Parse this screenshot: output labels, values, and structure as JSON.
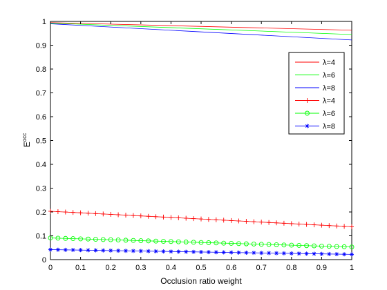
{
  "chart_data": {
    "type": "line",
    "xlabel": "Occlusion ratio weight",
    "ylabel": {
      "base": "E",
      "sup": "occ"
    },
    "xlim": [
      0,
      1
    ],
    "ylim": [
      0,
      1
    ],
    "xticks": [
      0,
      0.1,
      0.2,
      0.3,
      0.4,
      0.5,
      0.6,
      0.7,
      0.8,
      0.9,
      1
    ],
    "xtick_labels": [
      "0",
      "0.1",
      "0.2",
      "0.3",
      "0.4",
      "0.5",
      "0.6",
      "0.7",
      "0.8",
      "0.9",
      "1"
    ],
    "yticks": [
      0,
      0.1,
      0.2,
      0.3,
      0.4,
      0.5,
      0.6,
      0.7,
      0.8,
      0.9,
      1
    ],
    "ytick_labels": [
      "0",
      "0.1",
      "0.2",
      "0.3",
      "0.4",
      "0.5",
      "0.6",
      "0.7",
      "0.8",
      "0.9",
      "1"
    ],
    "grid": false,
    "legend_position": "top-right",
    "series": [
      {
        "name": "λ=4",
        "color": "#ff0000",
        "marker": "none",
        "x": [
          0,
          1
        ],
        "y": [
          0.995,
          0.963
        ]
      },
      {
        "name": "λ=6",
        "color": "#00ff00",
        "marker": "none",
        "x": [
          0,
          1
        ],
        "y": [
          0.993,
          0.945
        ]
      },
      {
        "name": "λ=8",
        "color": "#0000ff",
        "marker": "none",
        "x": [
          0,
          1
        ],
        "y": [
          0.99,
          0.922
        ]
      },
      {
        "name": "λ=4",
        "color": "#ff0000",
        "marker": "plus",
        "x": [
          0,
          1
        ],
        "y": [
          0.203,
          0.138
        ]
      },
      {
        "name": "λ=6",
        "color": "#00ff00",
        "marker": "circle",
        "x": [
          0,
          1
        ],
        "y": [
          0.091,
          0.053
        ]
      },
      {
        "name": "λ=8",
        "color": "#0000ff",
        "marker": "star",
        "x": [
          0,
          1
        ],
        "y": [
          0.042,
          0.022
        ]
      }
    ],
    "marker_count": 41
  }
}
